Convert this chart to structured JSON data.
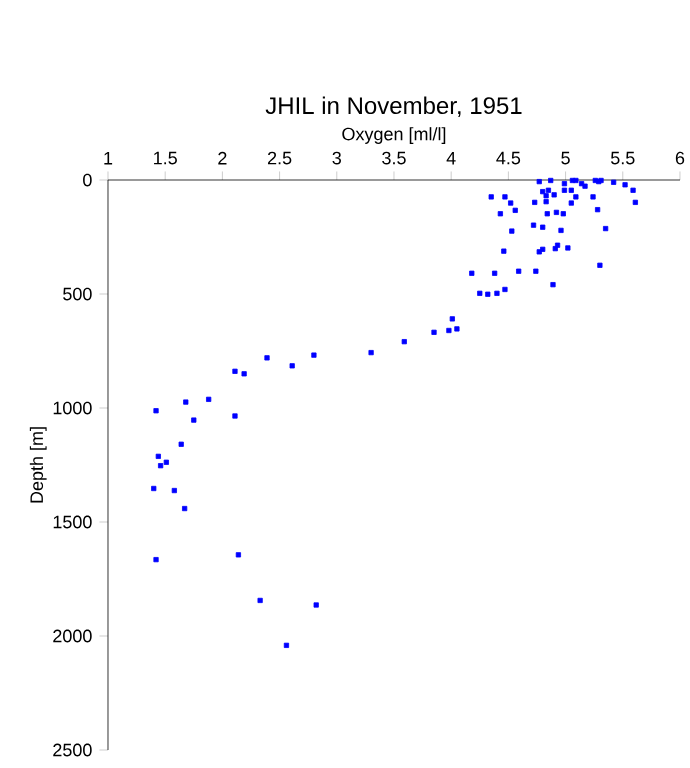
{
  "chart_data": {
    "type": "scatter",
    "title": "JHIL in November, 1951",
    "xlabel": "Oxygen [ml/l]",
    "ylabel": "Depth [m]",
    "x": [
      3.59,
      3.3,
      2.8,
      2.61,
      2.39,
      2.19,
      2.11,
      1.88,
      1.68,
      1.42,
      1.75,
      2.11,
      1.64,
      1.44,
      1.51,
      1.46,
      1.4,
      1.58,
      1.67,
      1.42,
      2.14,
      2.33,
      2.82,
      2.56,
      3.85,
      4.01,
      3.98,
      4.05,
      4.18,
      4.25,
      4.32,
      4.4,
      4.47,
      4.38,
      4.59,
      4.74,
      4.89,
      5.3,
      4.46,
      4.53,
      4.72,
      4.8,
      4.8,
      4.77,
      4.93,
      4.91,
      5.02,
      4.96,
      5.35,
      4.43,
      4.56,
      4.52,
      4.47,
      4.35,
      4.73,
      4.84,
      4.92,
      4.98,
      4.83,
      4.83,
      4.9,
      4.85,
      4.8,
      4.77,
      4.87,
      4.99,
      4.99,
      5.05,
      5.09,
      5.05,
      5.06,
      5.09,
      5.14,
      5.17,
      5.24,
      5.28,
      5.26,
      5.29,
      5.31,
      5.42,
      5.52,
      5.59,
      5.61
    ],
    "series": [
      {
        "color": "#0000ff",
        "values": [
          709,
          757,
          768,
          815,
          780,
          850,
          839,
          962,
          974,
          1012,
          1053,
          1035,
          1159,
          1212,
          1238,
          1253,
          1353,
          1362,
          1441,
          1665,
          1644,
          1844,
          1864,
          2041,
          668,
          609,
          660,
          653,
          409,
          497,
          501,
          497,
          480,
          409,
          400,
          400,
          459,
          374,
          312,
          224,
          198,
          207,
          304,
          315,
          286,
          301,
          298,
          221,
          213,
          148,
          133,
          101,
          74,
          74,
          98,
          148,
          142,
          148,
          95,
          69,
          65,
          45,
          51,
          7,
          2,
          16,
          45,
          101,
          74,
          45,
          2,
          2,
          16,
          27,
          74,
          130,
          2,
          7,
          2,
          10,
          21,
          45,
          98
        ]
      }
    ],
    "xlim": [
      1,
      6
    ],
    "xticks": [
      1,
      1.5,
      2,
      2.5,
      3,
      3.5,
      4,
      4.5,
      5,
      5.5,
      6
    ],
    "ylim": [
      2500,
      0
    ],
    "yticks": [
      0,
      500,
      1000,
      1500,
      2000,
      2500
    ],
    "grid": false,
    "marker": "square"
  }
}
